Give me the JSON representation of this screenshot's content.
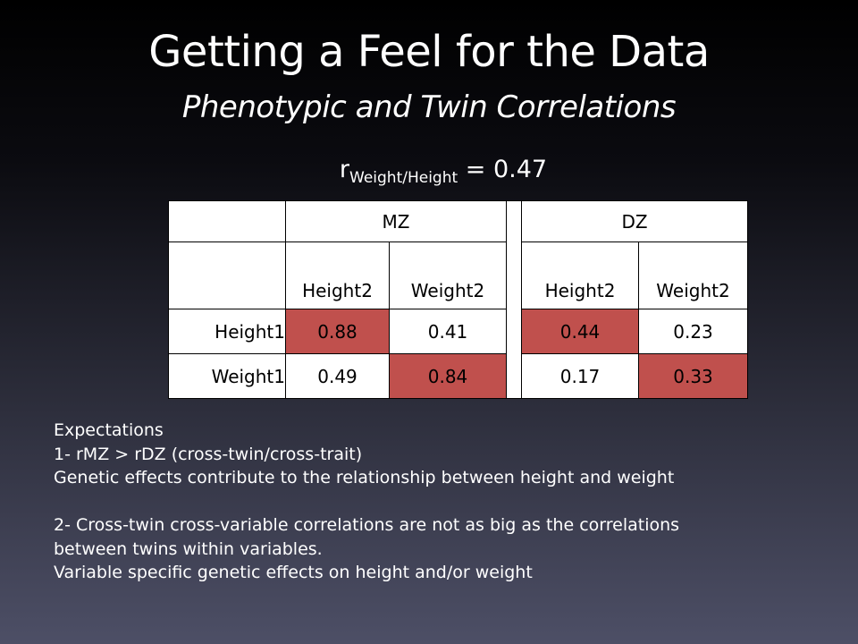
{
  "slide": {
    "title": "Getting a Feel for the Data",
    "subtitle": "Phenotypic and Twin Correlations",
    "r_prefix": "r",
    "r_subscript": "Weight/Height",
    "r_value": "= 0.47"
  },
  "table": {
    "group_headers": [
      "MZ",
      "DZ"
    ],
    "column_headers": [
      "Height2",
      "Weight2",
      "Height2",
      "Weight2"
    ],
    "rows": [
      {
        "label": "Height1",
        "values": [
          "0.88",
          "0.41",
          "0.44",
          "0.23"
        ]
      },
      {
        "label": "Weight1",
        "values": [
          "0.49",
          "0.84",
          "0.17",
          "0.33"
        ]
      }
    ],
    "highlight_color": "#c0504d"
  },
  "notes": {
    "heading": "Expectations",
    "line1": "1- rMZ > rDZ (cross-twin/cross-trait)",
    "line2": "Genetic effects contribute to the relationship between height and weight",
    "line3": "2- Cross-twin cross-variable correlations are not as big as the correlations",
    "line4": "between twins within variables.",
    "line5": "Variable specific genetic effects on height and/or weight"
  }
}
